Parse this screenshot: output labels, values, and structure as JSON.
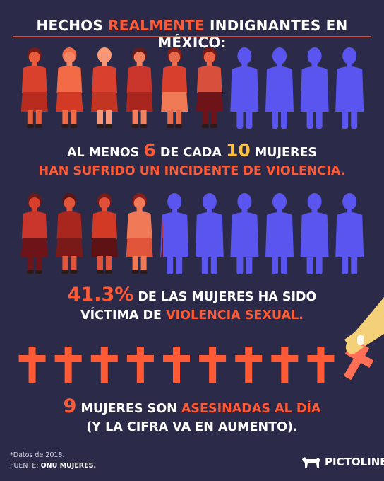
{
  "header": {
    "title_part1": "HECHOS ",
    "title_highlight": "REALMENTE",
    "title_part2": " INDIGNANTES EN MÉXICO:"
  },
  "stat1": {
    "line1_a": "AL MENOS ",
    "num1": "6",
    "line1_b": " DE CADA ",
    "num2": "10",
    "line1_c": " MUJERES",
    "line2": "HAN SUFRIDO UN INCIDENTE DE VIOLENCIA."
  },
  "stat2": {
    "percent": "41.3%",
    "line1": " DE LAS MUJERES HA SIDO",
    "line2_a": "VÍCTIMA DE ",
    "line2_highlight": "VIOLENCIA SEXUAL."
  },
  "stat3": {
    "num": "9",
    "line1_a": " MUJERES SON ",
    "line1_highlight": "ASESINADAS AL DÍA",
    "line2": "(Y LA CIFRA VA EN AUMENTO)."
  },
  "values": {
    "violence_share": 0.6,
    "sexual_violence_share": 0.413,
    "daily_murders": 9
  },
  "footer": {
    "note": "*Datos de 2018.",
    "source_label": "FUENTE: ",
    "source": "ONU MUJERES."
  },
  "brand": {
    "name": "PICTOLINE"
  },
  "colors": {
    "background": "#2b2a48",
    "accent": "#ff5a36",
    "highlight": "#ffbf3f",
    "blue": "#5b55f0"
  },
  "icons": [
    "woman-figure-icon",
    "cross-icon",
    "hand-icon",
    "bull-logo-icon"
  ]
}
